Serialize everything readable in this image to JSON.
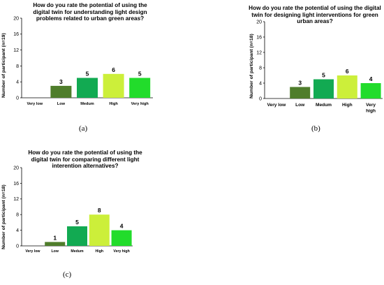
{
  "colors": {
    "very_low": "#4f7d2b",
    "low": "#4f7d2b",
    "medium": "#12aa52",
    "high": "#ccef3a",
    "very_high": "#22dc2b"
  },
  "captions": [
    "(a)",
    "(b)",
    "(c)"
  ],
  "chart_data": [
    {
      "type": "bar",
      "title": "How do you rate the potential of using the digital twin for understanding light design problems related to urban green areas?",
      "xlabel": "",
      "ylabel": "Number of participant (n=19)",
      "categories": [
        "Very low",
        "Low",
        "Medum",
        "High",
        "Very high"
      ],
      "values": [
        0,
        3,
        5,
        6,
        5
      ],
      "data_labels": [
        "",
        "3",
        "5",
        "6",
        "5"
      ],
      "ylim": [
        0,
        20
      ],
      "yticks": [
        "0",
        "4",
        "8",
        "12",
        "16",
        "20"
      ],
      "grid": false
    },
    {
      "type": "bar",
      "title": "How do you rate the potential of using the digital twin for designing light interventions for green urban areas?",
      "xlabel": "",
      "ylabel": "Number of participant (n=18)",
      "categories": [
        "Very low",
        "Low",
        "Medum",
        "High",
        "Very high"
      ],
      "values": [
        0,
        3,
        5,
        6,
        4
      ],
      "data_labels": [
        "",
        "3",
        "5",
        "6",
        "4"
      ],
      "ylim": [
        0,
        20
      ],
      "yticks": [
        "0",
        "4",
        "8",
        "12",
        "16",
        "20"
      ],
      "grid": false
    },
    {
      "type": "bar",
      "title": "How do you rate the potential of using the digital twin for comparing different light interention alternatives?",
      "xlabel": "",
      "ylabel": "Number of participant (n=18)",
      "categories": [
        "Very low",
        "Low",
        "Medum",
        "High",
        "Very high"
      ],
      "values": [
        0,
        1,
        5,
        8,
        4
      ],
      "data_labels": [
        "",
        "1",
        "5",
        "8",
        "4"
      ],
      "ylim": [
        0,
        20
      ],
      "yticks": [
        "0",
        "4",
        "8",
        "12",
        "16",
        "20"
      ],
      "grid": false
    }
  ]
}
